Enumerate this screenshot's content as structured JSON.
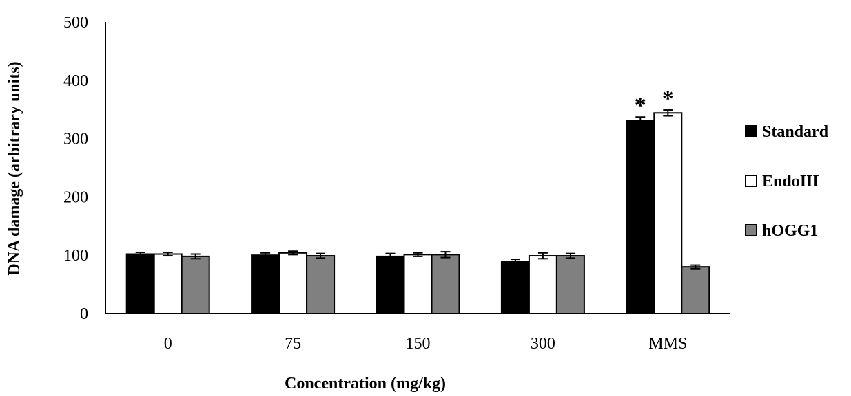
{
  "chart_data": {
    "type": "bar",
    "categories": [
      "0",
      "75",
      "150",
      "300",
      "MMS"
    ],
    "series": [
      {
        "name": "Standard",
        "color": "#000000",
        "values": [
          102,
          100,
          98,
          89,
          331
        ],
        "errors": [
          3,
          4,
          5,
          4,
          6
        ]
      },
      {
        "name": "EndoIII",
        "color": "#ffffff",
        "values": [
          102,
          104,
          101,
          99,
          344
        ],
        "errors": [
          3,
          3,
          3,
          5,
          5
        ]
      },
      {
        "name": "hOGG1",
        "color": "#808080",
        "values": [
          98,
          99,
          101,
          99,
          80
        ],
        "errors": [
          4,
          4,
          5,
          4,
          3
        ]
      }
    ],
    "significance": [
      {
        "category": "MMS",
        "series": "Standard",
        "label": "*"
      },
      {
        "category": "MMS",
        "series": "EndoIII",
        "label": "*"
      }
    ],
    "xlabel": "Concentration (mg/kg)",
    "ylabel": "DNA damage (arbitrary  units)",
    "ylim": [
      0,
      500
    ],
    "yticks": [
      "0",
      "100",
      "200",
      "300",
      "400",
      "500"
    ],
    "grid": false,
    "legend_position": "right"
  }
}
